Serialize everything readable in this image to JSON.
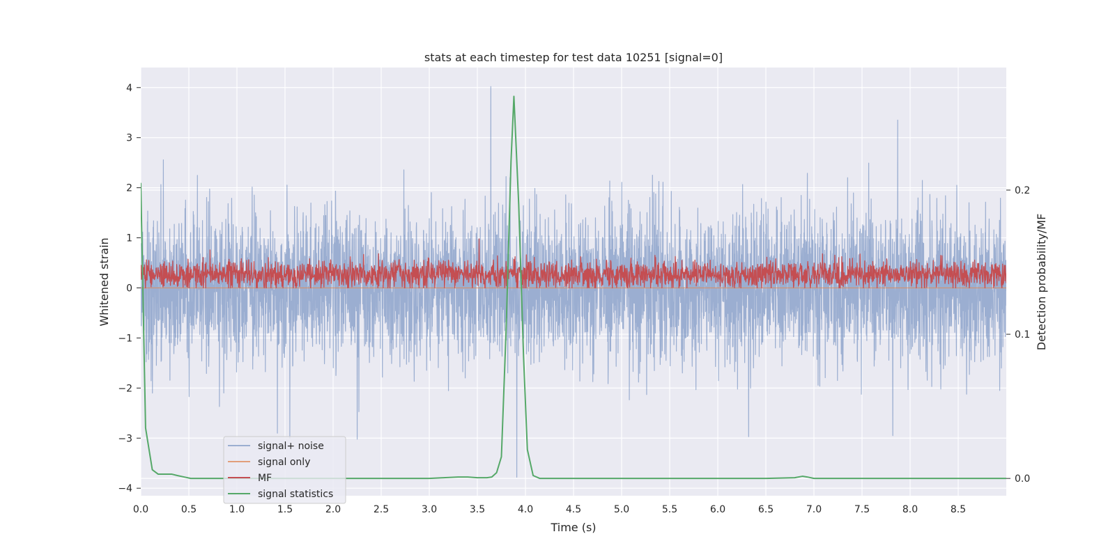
{
  "chart_data": {
    "type": "line",
    "title": "stats at each timestep for test data 10251 [signal=0]",
    "xlabel": "Time (s)",
    "ylabel": "Whitened strain",
    "y2label": "Detection probability/MF",
    "xlim": [
      0.0,
      9.0
    ],
    "ylim": [
      -4.15,
      4.4
    ],
    "y2lim": [
      -0.012,
      0.285
    ],
    "xticks": [
      0.0,
      0.5,
      1.0,
      1.5,
      2.0,
      2.5,
      3.0,
      3.5,
      4.0,
      4.5,
      5.0,
      5.5,
      6.0,
      6.5,
      7.0,
      7.5,
      8.0,
      8.5
    ],
    "xtick_labels": [
      "0.0",
      "0.5",
      "1.0",
      "1.5",
      "2.0",
      "2.5",
      "3.0",
      "3.5",
      "4.0",
      "4.5",
      "5.0",
      "5.5",
      "6.0",
      "6.5",
      "7.0",
      "7.5",
      "8.0",
      "8.5"
    ],
    "yticks": [
      4,
      3,
      2,
      1,
      0,
      -1,
      -2,
      -3,
      -4
    ],
    "ytick_labels": [
      "4",
      "3",
      "2",
      "1",
      "0",
      "−1",
      "−2",
      "−3",
      "−4"
    ],
    "y2ticks": [
      0.2,
      0.1,
      0.0
    ],
    "y2tick_labels": [
      "0.2",
      "0.1",
      "0.0"
    ],
    "grid": true,
    "legend_position": "lower-left",
    "series": [
      {
        "name": "signal+ noise",
        "axis": "left",
        "color": "#4c72b0",
        "opacity": 0.5,
        "noise": {
          "samples": 4600,
          "seed": 10251,
          "sigma": 0.72,
          "clip": [
            -3.0,
            3.4
          ]
        },
        "peaks": [
          {
            "x": 3.64,
            "y": 4.02
          },
          {
            "x": 3.91,
            "y": -3.78
          },
          {
            "x": 3.84,
            "y": 2.2
          },
          {
            "x": 1.42,
            "y": -2.9
          },
          {
            "x": 1.55,
            "y": -3.0
          },
          {
            "x": 2.25,
            "y": -3.02
          },
          {
            "x": 5.07,
            "y": 1.75
          },
          {
            "x": 5.32,
            "y": 2.25
          },
          {
            "x": 7.35,
            "y": 2.2
          },
          {
            "x": 7.87,
            "y": 3.35
          },
          {
            "x": 6.32,
            "y": -2.97
          },
          {
            "x": 7.82,
            "y": -2.95
          }
        ]
      },
      {
        "name": "signal only",
        "axis": "left",
        "color": "#dd8452",
        "opacity": 0.75,
        "x": [
          0.0,
          9.0
        ],
        "y": [
          0.0,
          0.0
        ]
      },
      {
        "name": "MF",
        "axis": "left",
        "color": "#c44e52",
        "noise": {
          "samples": 2600,
          "seed": 777,
          "mean": 0.27,
          "sigma": 0.14,
          "clip": [
            0.0,
            0.8
          ]
        },
        "peaks": [
          {
            "x": 3.52,
            "y": 0.98
          }
        ]
      },
      {
        "name": "signal statistics",
        "axis": "right",
        "color": "#55a868",
        "x": [
          0.0,
          0.05,
          0.12,
          0.18,
          0.25,
          0.32,
          0.38,
          0.45,
          0.52,
          0.6,
          0.8,
          1.0,
          1.5,
          2.0,
          2.5,
          3.0,
          3.15,
          3.3,
          3.4,
          3.5,
          3.6,
          3.65,
          3.7,
          3.75,
          3.8,
          3.85,
          3.88,
          3.93,
          3.98,
          4.02,
          4.08,
          4.15,
          4.3,
          4.5,
          5.0,
          5.5,
          6.0,
          6.5,
          6.8,
          6.88,
          6.93,
          7.0,
          7.5,
          8.0,
          8.5,
          9.0
        ],
        "y": [
          0.205,
          0.035,
          0.006,
          0.003,
          0.003,
          0.003,
          0.002,
          0.001,
          0.0,
          0.0,
          0.0,
          0.0,
          0.0,
          0.0,
          0.0,
          0.0,
          0.0005,
          0.001,
          0.001,
          0.0005,
          0.0005,
          0.001,
          0.004,
          0.015,
          0.105,
          0.22,
          0.265,
          0.19,
          0.085,
          0.02,
          0.002,
          0.0,
          0.0,
          0.0,
          0.0,
          0.0,
          0.0,
          0.0,
          0.0005,
          0.0015,
          0.001,
          0.0,
          0.0,
          0.0,
          0.0,
          0.0
        ]
      }
    ]
  }
}
